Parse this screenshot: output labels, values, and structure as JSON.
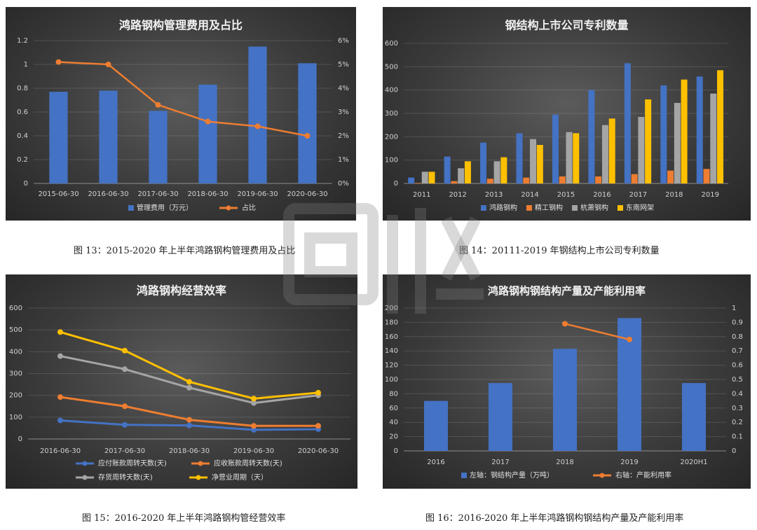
{
  "chart_data": [
    {
      "type": "bar",
      "title": "鸿路钢构管理费用及占比",
      "categories": [
        "2015-06-30",
        "2016-06-30",
        "2017-06-30",
        "2018-06-30",
        "2019-06-30",
        "2020-06-30"
      ],
      "series": [
        {
          "name": "管理费用（万元）",
          "type": "bar",
          "axis": "left",
          "color": "#4472c4",
          "values": [
            0.77,
            0.78,
            0.61,
            0.83,
            1.15,
            1.01
          ]
        },
        {
          "name": "占比",
          "type": "line",
          "axis": "right",
          "color": "#ed7d31",
          "values": [
            5.1,
            5.0,
            3.3,
            2.6,
            2.4,
            2.0
          ]
        }
      ],
      "yticks_left": [
        "0",
        "0.2",
        "0.4",
        "0.6",
        "0.8",
        "1",
        "1.2"
      ],
      "yticks_right": [
        "0%",
        "1%",
        "2%",
        "3%",
        "4%",
        "5%",
        "6%"
      ],
      "ylim": [
        0,
        1.2
      ],
      "ylim_right": [
        0,
        6
      ],
      "grid": true,
      "legend": "bottom",
      "caption": "图 13：2015-2020 年上半年鸿路钢构管理费用及占比"
    },
    {
      "type": "bar",
      "title": "钢结构上市公司专利数量",
      "categories": [
        "2011",
        "2012",
        "2013",
        "2014",
        "2015",
        "2016",
        "2017",
        "2018",
        "2019"
      ],
      "series": [
        {
          "name": "鸿路钢构",
          "color": "#4472c4",
          "values": [
            25,
            115,
            175,
            215,
            295,
            400,
            515,
            420,
            458
          ]
        },
        {
          "name": "精工钢构",
          "color": "#ed7d31",
          "values": [
            2,
            10,
            20,
            25,
            30,
            30,
            40,
            55,
            62
          ]
        },
        {
          "name": "杭萧钢构",
          "color": "#a5a5a5",
          "values": [
            50,
            65,
            95,
            190,
            220,
            250,
            285,
            345,
            385
          ]
        },
        {
          "name": "东南网架",
          "color": "#ffc000",
          "values": [
            50,
            95,
            112,
            165,
            215,
            278,
            360,
            445,
            485
          ]
        }
      ],
      "yticks_left": [
        "0",
        "100",
        "200",
        "300",
        "400",
        "500",
        "600"
      ],
      "ylim": [
        0,
        600
      ],
      "grid": true,
      "legend": "bottom",
      "caption": "图 14：20111-2019 年钢结构上市公司专利数量"
    },
    {
      "type": "line",
      "title": "鸿路钢构经营效率",
      "categories": [
        "2016-06-30",
        "2017-06-30",
        "2018-06-30",
        "2019-06-30",
        "2020-06-30"
      ],
      "series": [
        {
          "name": "应付账款周转天数(天)",
          "color": "#4472c4",
          "values": [
            85,
            65,
            62,
            42,
            45
          ]
        },
        {
          "name": "应收账款周转天数(天)",
          "color": "#ed7d31",
          "values": [
            192,
            150,
            88,
            60,
            60
          ]
        },
        {
          "name": "存货周转天数(天)",
          "color": "#a5a5a5",
          "values": [
            380,
            320,
            235,
            165,
            200
          ]
        },
        {
          "name": "净营业周期（天）",
          "color": "#ffc000",
          "values": [
            490,
            405,
            262,
            185,
            212
          ]
        }
      ],
      "yticks_left": [
        "0",
        "100",
        "200",
        "300",
        "400",
        "500",
        "600"
      ],
      "ylim": [
        0,
        600
      ],
      "grid": true,
      "legend": "bottom",
      "caption": "图 15：2016-2020 年上半年鸿路钢构管经营效率"
    },
    {
      "type": "bar",
      "title": "鸿路钢构钢结构产量及产能利用率",
      "categories": [
        "2016",
        "2017",
        "2018",
        "2019",
        "2020H1"
      ],
      "series": [
        {
          "name": "左轴：钢结构产量（万吨）",
          "type": "bar",
          "axis": "left",
          "color": "#4472c4",
          "values": [
            70,
            95,
            143,
            186,
            95
          ]
        },
        {
          "name": "右轴：产能利用率",
          "type": "line",
          "axis": "right",
          "color": "#ed7d31",
          "values": [
            null,
            null,
            0.89,
            0.78,
            null
          ]
        }
      ],
      "yticks_left": [
        "0",
        "20",
        "40",
        "60",
        "80",
        "100",
        "120",
        "140",
        "160",
        "180",
        "200"
      ],
      "yticks_right": [
        "0",
        "0.1",
        "0.2",
        "0.3",
        "0.4",
        "0.5",
        "0.6",
        "0.7",
        "0.8",
        "0.9",
        "1"
      ],
      "ylim": [
        0,
        200
      ],
      "ylim_right": [
        0,
        1
      ],
      "grid": true,
      "legend": "bottom",
      "caption": "图 16：2016-2020 年上半年鸿路钢构钢结构产量及产能利用率"
    }
  ]
}
